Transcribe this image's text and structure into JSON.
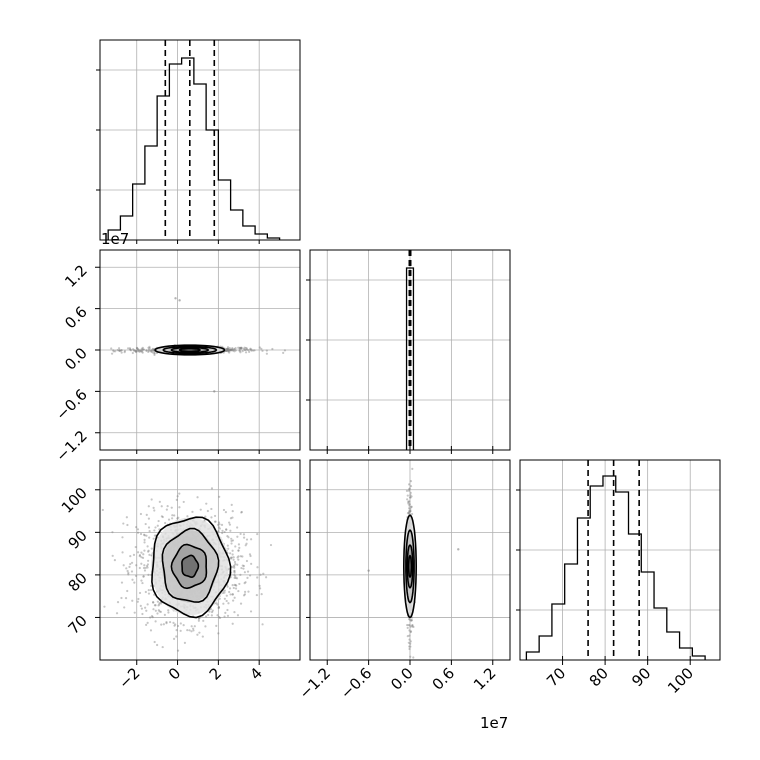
{
  "chart_data": {
    "type": "corner",
    "offset_labels": {
      "y_row1": "1e7",
      "x_col1": "1e7"
    },
    "histograms": [
      {
        "name": "p0",
        "type": "histogram",
        "xlim": [
          -3.8,
          6.0
        ],
        "bin_edges": [
          -3.4,
          -2.8,
          -2.2,
          -1.6,
          -1.0,
          -0.4,
          0.2,
          0.8,
          1.4,
          2.0,
          2.6,
          3.2,
          3.8,
          4.4,
          5.0
        ],
        "counts": [
          0.05,
          0.12,
          0.28,
          0.47,
          0.72,
          0.88,
          0.91,
          0.78,
          0.55,
          0.3,
          0.15,
          0.07,
          0.03,
          0.01
        ],
        "quantiles": [
          -0.6,
          0.6,
          1.8
        ],
        "ylim": [
          0,
          1.0
        ]
      },
      {
        "name": "p1",
        "type": "histogram",
        "xlim": [
          -1.45,
          1.45
        ],
        "bin_edges": [
          -0.05,
          0.0,
          0.05
        ],
        "counts": [
          0.91,
          0.91
        ],
        "quantiles": [
          -0.01,
          0.0,
          0.01
        ],
        "ylim": [
          0,
          1.0
        ]
      },
      {
        "name": "p2",
        "type": "histogram",
        "xlim": [
          60,
          107
        ],
        "bin_edges": [
          61.5,
          64.5,
          67.5,
          70.5,
          73.5,
          76.5,
          79.5,
          82.5,
          85.5,
          88.5,
          91.5,
          94.5,
          97.5,
          100.5,
          103.5
        ],
        "counts": [
          0.04,
          0.12,
          0.28,
          0.48,
          0.71,
          0.87,
          0.92,
          0.84,
          0.63,
          0.44,
          0.26,
          0.14,
          0.06,
          0.02
        ],
        "quantiles": [
          76,
          82,
          88
        ],
        "ylim": [
          0,
          1.0
        ]
      }
    ],
    "pairs": [
      {
        "name": "p0-p1",
        "type": "scatter-contour",
        "xlim": [
          -3.8,
          6.0
        ],
        "ylim": [
          -1.45,
          1.45
        ],
        "center": [
          0.6,
          0.0
        ],
        "spread": [
          1.2,
          0.015
        ],
        "contour_levels": [
          [
            1.7,
            0.07
          ],
          [
            1.3,
            0.05
          ],
          [
            0.9,
            0.035
          ],
          [
            0.5,
            0.02
          ]
        ],
        "outliers": [
          [
            -0.1,
            0.75
          ],
          [
            0.1,
            0.72
          ],
          [
            1.8,
            -0.6
          ]
        ]
      },
      {
        "name": "p0-p2",
        "type": "scatter-contour",
        "xlim": [
          -3.8,
          6.0
        ],
        "ylim": [
          60,
          107
        ],
        "center": [
          0.6,
          82
        ],
        "spread": [
          1.2,
          6.0
        ],
        "contour_levels": [
          [
            1.9,
            11.5
          ],
          [
            1.35,
            8.5
          ],
          [
            0.85,
            5.0
          ],
          [
            0.4,
            2.5
          ]
        ],
        "outliers": []
      },
      {
        "name": "p1-p2",
        "type": "scatter-contour",
        "xlim": [
          -1.45,
          1.45
        ],
        "ylim": [
          60,
          107
        ],
        "center": [
          0.0,
          82
        ],
        "spread": [
          0.015,
          6.0
        ],
        "contour_levels": [
          [
            0.09,
            12.0
          ],
          [
            0.06,
            8.5
          ],
          [
            0.04,
            5.0
          ],
          [
            0.02,
            2.5
          ]
        ],
        "outliers": [
          [
            -0.6,
            81
          ],
          [
            0.7,
            86
          ]
        ]
      }
    ],
    "axes": {
      "x_col0": {
        "ticks": [
          -2,
          0,
          2,
          4
        ],
        "tick_labels": [
          "−2",
          "0",
          "2",
          "4"
        ]
      },
      "x_col1": {
        "ticks": [
          -1.2,
          -0.6,
          0.0,
          0.6,
          1.2
        ],
        "tick_labels": [
          "−1.2",
          "−0.6",
          "0.0",
          "0.6",
          "1.2"
        ]
      },
      "x_col2": {
        "ticks": [
          70,
          80,
          90,
          100
        ],
        "tick_labels": [
          "70",
          "80",
          "90",
          "100"
        ]
      },
      "y_row1": {
        "ticks": [
          1.2,
          0.6,
          0.0,
          -0.6,
          -1.2
        ],
        "tick_labels": [
          "1.2",
          "0.6",
          "0.0",
          "−0.6",
          "−1.2"
        ]
      },
      "y_row2": {
        "ticks": [
          100,
          90,
          80,
          70
        ],
        "tick_labels": [
          "100",
          "90",
          "80",
          "70"
        ]
      }
    },
    "grid": true,
    "colors": {
      "line": "#000000",
      "grid": "#b0b0b0",
      "points": "#808080"
    }
  }
}
